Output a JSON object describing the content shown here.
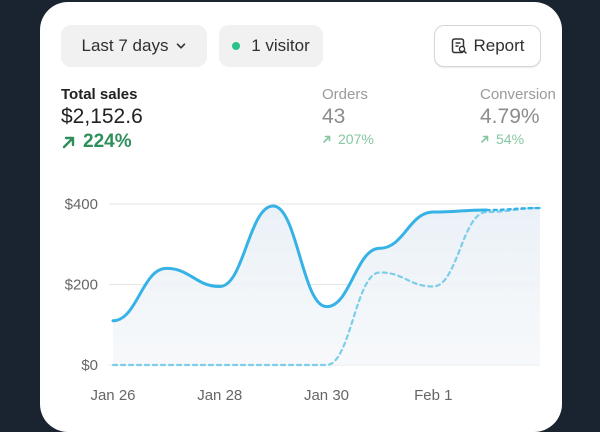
{
  "filters": {
    "date_range": "Last 7 days",
    "visitors": "1 visitor",
    "report_label": "Report"
  },
  "metrics": [
    {
      "label": "Total sales",
      "value": "$2,152.6",
      "change": "224%"
    },
    {
      "label": "Orders",
      "value": "43",
      "change": "207%"
    },
    {
      "label": "Conversion",
      "value": "4.79%",
      "change": "54%"
    }
  ],
  "colors": {
    "accent_line": "#36b2e6",
    "positive": "#2f8f5b",
    "positive_muted": "#86c7a2",
    "live_dot": "#29c28a"
  },
  "chart_data": {
    "type": "line",
    "y_ticks": [
      "$400",
      "$200",
      "$0"
    ],
    "x_ticks": [
      "Jan 26",
      "Jan 28",
      "Jan 30",
      "Feb 1"
    ],
    "ylim": [
      0,
      400
    ],
    "grid": true,
    "x": [
      0,
      1,
      2,
      3,
      4,
      5,
      6,
      7,
      8
    ],
    "series": [
      {
        "style": "solid",
        "values": [
          110,
          240,
          195,
          395,
          145,
          290,
          380,
          385,
          390
        ]
      },
      {
        "style": "dashed",
        "values": [
          0,
          0,
          0,
          0,
          0,
          230,
          195,
          380,
          390
        ]
      }
    ]
  }
}
